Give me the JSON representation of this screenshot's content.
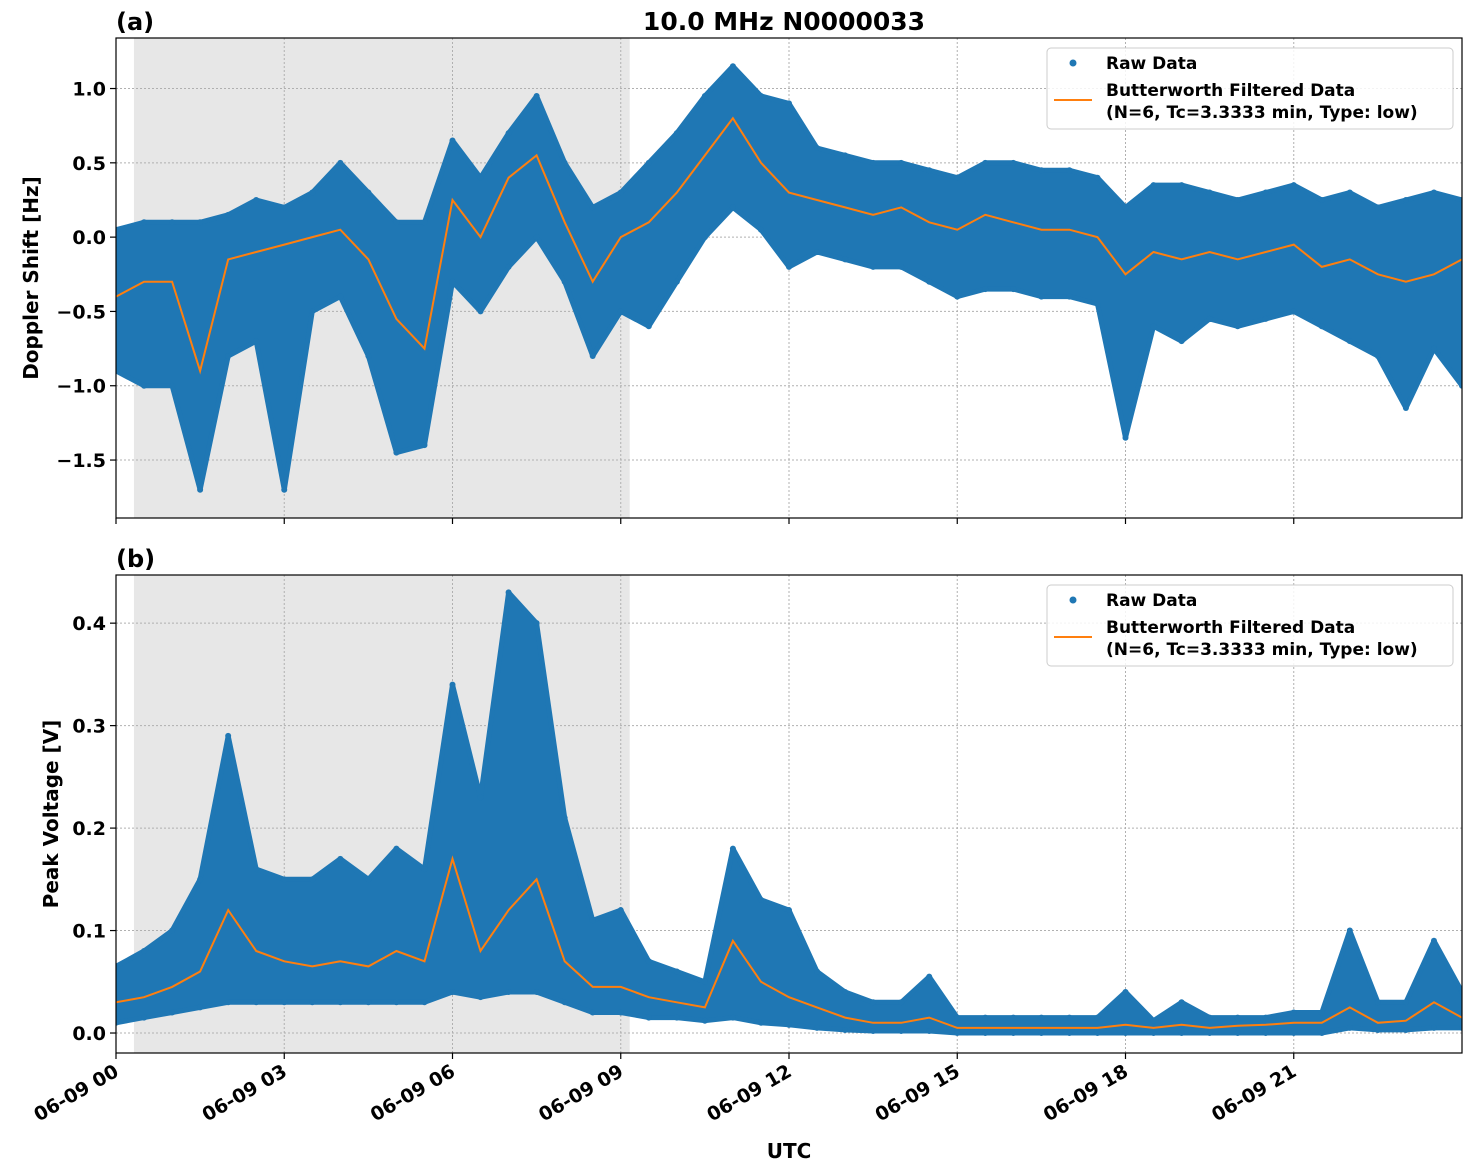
{
  "chart_data": [
    {
      "type": "scatter",
      "panel_label": "(a)",
      "title": "10.0 MHz N0000033",
      "xlabel": "",
      "ylabel": "Doppler Shift [Hz]",
      "ylim": [
        -1.89,
        1.34
      ],
      "xlim": [
        "06-09 00:00",
        "06-10 00:00"
      ],
      "grid": true,
      "legend_placement": "top-right",
      "yticks": [
        "1.0",
        "0.5",
        "0.0",
        "−0.5",
        "−1.0",
        "−1.5"
      ],
      "ytick_values": [
        1.0,
        0.5,
        0.0,
        -0.5,
        -1.0,
        -1.5
      ],
      "shaded_span_hours": [
        0.32,
        9.16
      ],
      "x_hours": [
        0,
        0.5,
        1,
        1.5,
        2,
        2.5,
        3,
        3.5,
        4,
        4.5,
        5,
        5.5,
        6,
        6.5,
        7,
        7.5,
        8,
        8.5,
        9,
        9.5,
        10,
        10.5,
        11,
        11.5,
        12,
        12.5,
        13,
        13.5,
        14,
        14.5,
        15,
        15.5,
        16,
        16.5,
        17,
        17.5,
        18,
        18.5,
        19,
        19.5,
        20,
        20.5,
        21,
        21.5,
        22,
        22.5,
        23,
        23.5,
        24
      ],
      "series": [
        {
          "name": "Raw Data",
          "color": "#1f77b4",
          "style": "points",
          "upper": [
            0.05,
            0.1,
            0.1,
            0.1,
            0.15,
            0.25,
            0.2,
            0.3,
            0.5,
            0.3,
            0.1,
            0.1,
            0.65,
            0.4,
            0.7,
            0.95,
            0.5,
            0.2,
            0.3,
            0.5,
            0.7,
            0.95,
            1.15,
            0.95,
            0.9,
            0.6,
            0.55,
            0.5,
            0.5,
            0.45,
            0.4,
            0.5,
            0.5,
            0.45,
            0.45,
            0.4,
            0.2,
            0.35,
            0.35,
            0.3,
            0.25,
            0.3,
            0.35,
            0.25,
            0.3,
            0.2,
            0.25,
            0.3,
            0.25
          ],
          "lower": [
            -0.9,
            -1.0,
            -1.0,
            -1.7,
            -0.8,
            -0.7,
            -1.7,
            -0.5,
            -0.4,
            -0.8,
            -1.45,
            -1.4,
            -0.3,
            -0.5,
            -0.2,
            0.0,
            -0.3,
            -0.8,
            -0.5,
            -0.6,
            -0.3,
            0.0,
            0.2,
            0.05,
            -0.2,
            -0.1,
            -0.15,
            -0.2,
            -0.2,
            -0.3,
            -0.4,
            -0.35,
            -0.35,
            -0.4,
            -0.4,
            -0.45,
            -1.35,
            -0.6,
            -0.7,
            -0.55,
            -0.6,
            -0.55,
            -0.5,
            -0.6,
            -0.7,
            -0.8,
            -1.15,
            -0.75,
            -1.0
          ]
        },
        {
          "name": "Butterworth Filtered Data\n(N=6, Tc=3.3333 min, Type: low)",
          "color": "#ff7f0e",
          "style": "line",
          "values": [
            -0.4,
            -0.3,
            -0.3,
            -0.9,
            -0.15,
            -0.1,
            -0.05,
            0.0,
            0.05,
            -0.15,
            -0.55,
            -0.75,
            0.25,
            0.0,
            0.4,
            0.55,
            0.1,
            -0.3,
            0.0,
            0.1,
            0.3,
            0.55,
            0.8,
            0.5,
            0.3,
            0.25,
            0.2,
            0.15,
            0.2,
            0.1,
            0.05,
            0.15,
            0.1,
            0.05,
            0.05,
            0.0,
            -0.25,
            -0.1,
            -0.15,
            -0.1,
            -0.15,
            -0.1,
            -0.05,
            -0.2,
            -0.15,
            -0.25,
            -0.3,
            -0.25,
            -0.15
          ]
        }
      ],
      "legend": [
        "Raw Data",
        "Butterworth Filtered Data",
        "(N=6, Tc=3.3333 min, Type: low)"
      ]
    },
    {
      "type": "scatter",
      "panel_label": "(b)",
      "xlabel": "UTC",
      "ylabel": "Peak Voltage [V]",
      "ylim": [
        -0.0195,
        0.447
      ],
      "xlim": [
        "06-09 00:00",
        "06-10 00:00"
      ],
      "grid": true,
      "legend_placement": "top-right",
      "yticks": [
        "0.0",
        "0.1",
        "0.2",
        "0.3",
        "0.4"
      ],
      "ytick_values": [
        0.0,
        0.1,
        0.2,
        0.3,
        0.4
      ],
      "xticks": [
        "06-09 00",
        "06-09 03",
        "06-09 06",
        "06-09 09",
        "06-09 12",
        "06-09 15",
        "06-09 18",
        "06-09 21"
      ],
      "xtick_hours": [
        0,
        3,
        6,
        9,
        12,
        15,
        18,
        21
      ],
      "shaded_span_hours": [
        0.32,
        9.16
      ],
      "x_hours": [
        0,
        0.5,
        1,
        1.5,
        2,
        2.5,
        3,
        3.5,
        4,
        4.5,
        5,
        5.5,
        6,
        6.5,
        7,
        7.5,
        8,
        8.5,
        9,
        9.5,
        10,
        10.5,
        11,
        11.5,
        12,
        12.5,
        13,
        13.5,
        14,
        14.5,
        15,
        15.5,
        16,
        16.5,
        17,
        17.5,
        18,
        18.5,
        19,
        19.5,
        20,
        20.5,
        21,
        21.5,
        22,
        22.5,
        23,
        23.5,
        24
      ],
      "series": [
        {
          "name": "Raw Data",
          "color": "#1f77b4",
          "style": "points",
          "upper": [
            0.065,
            0.08,
            0.1,
            0.15,
            0.29,
            0.16,
            0.15,
            0.15,
            0.17,
            0.15,
            0.18,
            0.16,
            0.34,
            0.23,
            0.43,
            0.4,
            0.21,
            0.11,
            0.12,
            0.07,
            0.06,
            0.05,
            0.18,
            0.13,
            0.12,
            0.06,
            0.04,
            0.03,
            0.03,
            0.055,
            0.015,
            0.015,
            0.015,
            0.015,
            0.015,
            0.015,
            0.04,
            0.012,
            0.03,
            0.015,
            0.015,
            0.015,
            0.02,
            0.02,
            0.1,
            0.03,
            0.03,
            0.09,
            0.04
          ],
          "lower": [
            0.01,
            0.015,
            0.02,
            0.025,
            0.03,
            0.03,
            0.03,
            0.03,
            0.03,
            0.03,
            0.03,
            0.03,
            0.04,
            0.035,
            0.04,
            0.04,
            0.03,
            0.02,
            0.02,
            0.015,
            0.015,
            0.012,
            0.015,
            0.01,
            0.008,
            0.005,
            0.003,
            0.002,
            0.002,
            0.002,
            0,
            0,
            0,
            0,
            0,
            0,
            0,
            0,
            0,
            0,
            0,
            0,
            0,
            0,
            0.005,
            0.003,
            0.003,
            0.005,
            0.005
          ]
        },
        {
          "name": "Butterworth Filtered Data\n(N=6, Tc=3.3333 min, Type: low)",
          "color": "#ff7f0e",
          "style": "line",
          "values": [
            0.03,
            0.035,
            0.045,
            0.06,
            0.12,
            0.08,
            0.07,
            0.065,
            0.07,
            0.065,
            0.08,
            0.07,
            0.17,
            0.08,
            0.12,
            0.15,
            0.07,
            0.045,
            0.045,
            0.035,
            0.03,
            0.025,
            0.09,
            0.05,
            0.035,
            0.025,
            0.015,
            0.01,
            0.01,
            0.015,
            0.005,
            0.005,
            0.005,
            0.005,
            0.005,
            0.005,
            0.008,
            0.005,
            0.008,
            0.005,
            0.007,
            0.008,
            0.01,
            0.01,
            0.025,
            0.01,
            0.012,
            0.03,
            0.015
          ]
        }
      ],
      "legend": [
        "Raw Data",
        "Butterworth Filtered Data",
        "(N=6, Tc=3.3333 min, Type: low)"
      ]
    }
  ]
}
